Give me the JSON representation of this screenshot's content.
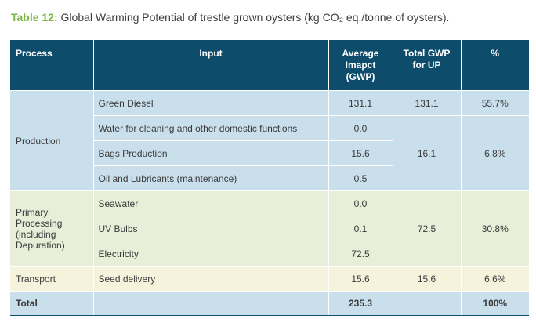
{
  "caption": {
    "label": "Table 12:",
    "text": "Global Warming Potential of trestle grown oysters (kg CO₂ eq./tonne of oysters)."
  },
  "table": {
    "headers": {
      "process": "Process",
      "input": "Input",
      "avg": "Average Imapct (GWP)",
      "total_gwp": "Total GWP for UP",
      "pct": "%"
    },
    "groups": [
      {
        "process": "Production",
        "total_gwp": "131.1",
        "rows": [
          {
            "input": "Green Diesel",
            "avg": "131.1",
            "total_gwp": "131.1",
            "pct": "55.7%"
          },
          {
            "input": "Water for cleaning and other domestic functions",
            "avg": "0.0"
          },
          {
            "input": "Bags Production",
            "avg": "15.6",
            "total_gwp": "16.1",
            "pct": "6.8%"
          },
          {
            "input": "Oil and Lubricants (maintenance)",
            "avg": "0.5"
          }
        ]
      },
      {
        "process": "Primary Processing (including Depuration)",
        "total_gwp": "72.5",
        "pct": "30.8%",
        "rows": [
          {
            "input": "Seawater",
            "avg": "0.0"
          },
          {
            "input": "UV Bulbs",
            "avg": "0.1"
          },
          {
            "input": "Electricity",
            "avg": "72.5"
          }
        ]
      },
      {
        "process": "Transport",
        "rows": [
          {
            "input": "Seed delivery",
            "avg": "15.6",
            "total_gwp": "15.6",
            "pct": "6.6%"
          }
        ]
      }
    ],
    "total": {
      "label": "Total",
      "avg": "235.3",
      "total_gwp": "",
      "pct": "100%"
    }
  },
  "colors": {
    "header_bg": "#0d4d6b",
    "caption_label": "#7ab648",
    "production_bg": "#c9dfeb",
    "primary_bg": "#e7efd8",
    "transport_bg": "#f6f3dd"
  }
}
